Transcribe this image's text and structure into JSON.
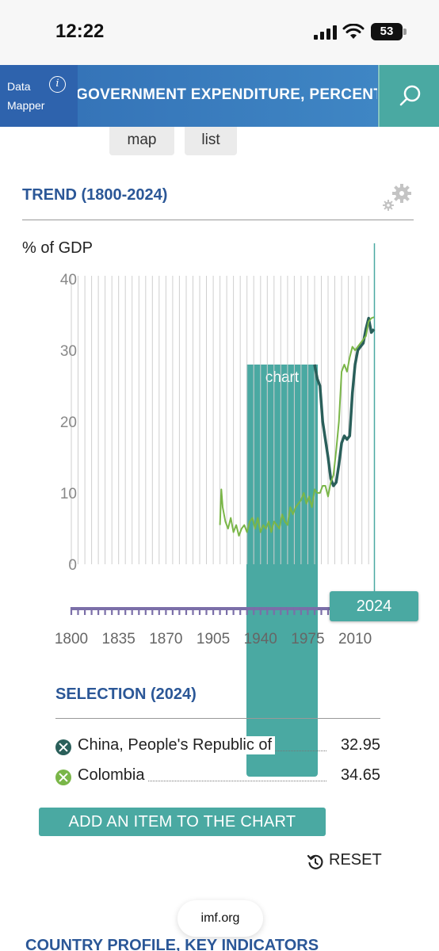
{
  "status_bar": {
    "time": "12:22",
    "battery": "53"
  },
  "header": {
    "brand_line1": "Data",
    "brand_line2": "Mapper",
    "info_glyph": "i",
    "title": "GOVERNMENT EXPENDITURE, PERCENT OF GDP",
    "search_icon": "search-icon"
  },
  "views": {
    "map": "map",
    "list": "list",
    "chart": "chart",
    "active": "chart"
  },
  "trend": {
    "title": "TREND (1800-2024)",
    "settings_icon": "gear-icon"
  },
  "chart_data": {
    "type": "line",
    "ylabel": "% of GDP",
    "ylim": [
      0,
      40
    ],
    "yticks": [
      0,
      10,
      20,
      30,
      40
    ],
    "xlim": [
      1800,
      2024
    ],
    "xticks": [
      1800,
      1835,
      1870,
      1905,
      1940,
      1975,
      2010
    ],
    "selected_year": "2024",
    "grid": "vertical",
    "series": [
      {
        "name": "China, People's Republic of",
        "color": "#2a5f5a",
        "x": [
          1980,
          1982,
          1984,
          1986,
          1988,
          1990,
          1992,
          1994,
          1996,
          1998,
          2000,
          2002,
          2004,
          2006,
          2008,
          2010,
          2012,
          2014,
          2016,
          2018,
          2020,
          2022,
          2024
        ],
        "y": [
          28,
          26,
          25,
          20,
          17.5,
          15,
          12,
          11,
          11.5,
          14,
          17,
          18,
          17.5,
          18,
          24,
          28,
          30,
          30.5,
          31,
          33,
          34.5,
          32.5,
          32.95
        ]
      },
      {
        "name": "Colombia",
        "color": "#7ab648",
        "x": [
          1910,
          1911,
          1912,
          1914,
          1916,
          1918,
          1920,
          1922,
          1924,
          1926,
          1928,
          1930,
          1932,
          1934,
          1936,
          1938,
          1940,
          1942,
          1944,
          1946,
          1948,
          1950,
          1952,
          1954,
          1956,
          1958,
          1960,
          1962,
          1964,
          1966,
          1968,
          1970,
          1972,
          1974,
          1976,
          1978,
          1980,
          1982,
          1984,
          1986,
          1988,
          1990,
          1992,
          1994,
          1996,
          1998,
          2000,
          2002,
          2004,
          2006,
          2008,
          2010,
          2012,
          2014,
          2016,
          2018,
          2020,
          2022,
          2024
        ],
        "y": [
          5.5,
          10.5,
          8,
          6,
          5,
          6.5,
          4.5,
          5.5,
          4,
          5,
          5.5,
          4.5,
          6,
          6.5,
          5,
          6.5,
          4.5,
          5.5,
          5,
          6,
          4.5,
          6,
          5.5,
          5,
          7,
          6,
          5.5,
          8,
          7,
          8,
          8.5,
          9,
          10,
          8.5,
          9.5,
          8,
          10.5,
          10,
          10,
          11,
          11,
          9.5,
          11.5,
          12.5,
          16,
          20,
          27,
          28,
          27,
          29,
          30.5,
          30,
          30.5,
          31,
          31.5,
          32,
          34,
          34.5,
          34.65
        ]
      }
    ]
  },
  "selection": {
    "title": "SELECTION (2024)",
    "items": [
      {
        "name": "China, People's Republic of",
        "value": "32.95",
        "color": "#2a5f5a"
      },
      {
        "name": "Colombia",
        "value": "34.65",
        "color": "#7ab648"
      }
    ]
  },
  "actions": {
    "add_item": "ADD AN ITEM TO THE CHART",
    "reset": "RESET"
  },
  "browser": {
    "url": "imf.org"
  },
  "next_section": "COUNTRY PROFILE, KEY INDICATORS"
}
